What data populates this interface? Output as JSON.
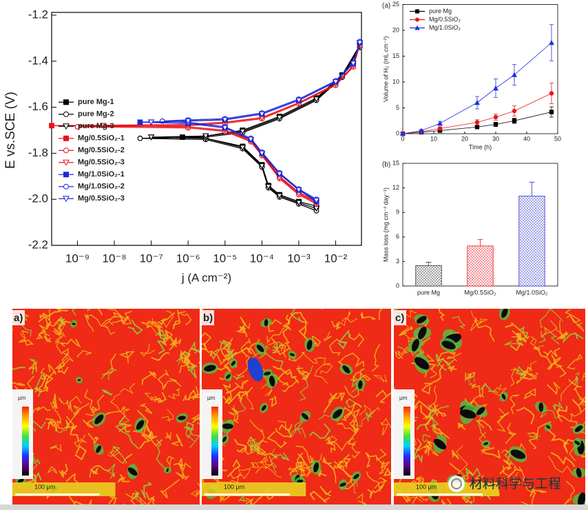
{
  "chart_data": [
    {
      "type": "line",
      "xscale": "log",
      "xlabel": "j (A cm⁻²)",
      "ylabel": "E vs.SCE (V)",
      "xlim": [
        2e-10,
        0.05
      ],
      "ylim": [
        -2.2,
        -1.2
      ],
      "xticks": [
        {
          "value": 1e-09,
          "label": "10⁻⁹"
        },
        {
          "value": 1e-08,
          "label": "10⁻⁸"
        },
        {
          "value": 1e-07,
          "label": "10⁻⁷"
        },
        {
          "value": 1e-06,
          "label": "10⁻⁶"
        },
        {
          "value": 1e-05,
          "label": "10⁻⁵"
        },
        {
          "value": 0.0001,
          "label": "10⁻⁴"
        },
        {
          "value": 0.001,
          "label": "10⁻³"
        },
        {
          "value": 0.01,
          "label": "10⁻²"
        }
      ],
      "yticks": [
        -2.2,
        {
          "value": -2,
          "label": "-2.0"
        },
        -1.8,
        -1.6,
        -1.4,
        -1.2
      ],
      "legend": "center left",
      "series": [
        {
          "name": "pure Mg-1",
          "color": "#000000",
          "marker": "square",
          "filled": true,
          "x": [
            0.003,
            0.001,
            0.0003,
            0.00015,
            0.0001,
            3e-05,
            3e-06,
            7e-07,
            3e-06,
            3e-05,
            0.0003,
            0.003,
            0.015,
            0.045
          ],
          "values": [
            -2.03,
            -2.01,
            -1.98,
            -1.94,
            -1.85,
            -1.77,
            -1.735,
            -1.73,
            -1.725,
            -1.7,
            -1.64,
            -1.56,
            -1.46,
            -1.33
          ]
        },
        {
          "name": "pure Mg-2",
          "color": "#000000",
          "marker": "circle",
          "filled": false,
          "x": [
            0.003,
            0.001,
            0.0003,
            0.00015,
            0.0001,
            3e-05,
            3e-06,
            5e-08,
            3e-06,
            3e-05,
            0.0003,
            0.003,
            0.015,
            0.045
          ],
          "values": [
            -2.05,
            -2.02,
            -1.99,
            -1.95,
            -1.86,
            -1.78,
            -1.74,
            -1.735,
            -1.73,
            -1.71,
            -1.65,
            -1.57,
            -1.47,
            -1.34
          ]
        },
        {
          "name": "pure Mg-3",
          "color": "#000000",
          "marker": "triangle-down",
          "filled": false,
          "x": [
            0.003,
            0.001,
            0.0003,
            0.00015,
            0.0001,
            3e-05,
            3e-06,
            1e-07,
            3e-06,
            3e-05,
            0.0003,
            0.003,
            0.015,
            0.045
          ],
          "values": [
            -2.04,
            -2.015,
            -1.985,
            -1.945,
            -1.855,
            -1.775,
            -1.735,
            -1.73,
            -1.725,
            -1.705,
            -1.645,
            -1.565,
            -1.465,
            -1.335
          ]
        },
        {
          "name": "Mg/0.5SiO₂-1",
          "color": "#e8141b",
          "marker": "square",
          "filled": true,
          "x": [
            0.003,
            0.001,
            0.0003,
            0.0001,
            5e-05,
            1e-05,
            1e-06,
            2e-10,
            1e-06,
            1e-05,
            0.0001,
            0.001,
            0.01,
            0.03,
            0.045
          ],
          "values": [
            -2.01,
            -1.97,
            -1.9,
            -1.8,
            -1.74,
            -1.7,
            -1.685,
            -1.68,
            -1.675,
            -1.665,
            -1.645,
            -1.58,
            -1.5,
            -1.42,
            -1.32
          ]
        },
        {
          "name": "Mg/0.5SiO₂-2",
          "color": "#e8141b",
          "marker": "circle",
          "filled": false,
          "x": [
            0.003,
            0.001,
            0.0003,
            0.0001,
            5e-05,
            1e-05,
            1e-06,
            1e-09,
            1e-06,
            1e-05,
            0.0001,
            0.001,
            0.01,
            0.03,
            0.045
          ],
          "values": [
            -2.02,
            -1.98,
            -1.91,
            -1.81,
            -1.75,
            -1.705,
            -1.69,
            -1.685,
            -1.68,
            -1.67,
            -1.65,
            -1.585,
            -1.505,
            -1.425,
            -1.33
          ]
        },
        {
          "name": "Mg/0.5SiO₂-3",
          "color": "#e8141b",
          "marker": "triangle-down",
          "filled": false,
          "x": [
            0.003,
            0.001,
            0.0003,
            0.0001,
            5e-05,
            1e-05,
            1e-06,
            5e-09,
            1e-06,
            1e-05,
            0.0001,
            0.001,
            0.01,
            0.03,
            0.045
          ],
          "values": [
            -2.015,
            -1.975,
            -1.905,
            -1.805,
            -1.745,
            -1.7,
            -1.685,
            -1.68,
            -1.675,
            -1.665,
            -1.645,
            -1.58,
            -1.5,
            -1.42,
            -1.325
          ]
        },
        {
          "name": "Mg/1.0SiO₂-1",
          "color": "#1f28d6",
          "marker": "square",
          "filled": true,
          "x": [
            0.003,
            0.001,
            0.0003,
            0.0001,
            5e-05,
            1e-05,
            1e-06,
            5e-08,
            1e-06,
            1e-05,
            0.0001,
            0.001,
            0.01,
            0.03,
            0.045
          ],
          "values": [
            -2.01,
            -1.96,
            -1.89,
            -1.8,
            -1.74,
            -1.69,
            -1.67,
            -1.665,
            -1.66,
            -1.655,
            -1.63,
            -1.57,
            -1.49,
            -1.41,
            -1.32
          ]
        },
        {
          "name": "Mg/1.0SiO₂-2",
          "color": "#1f28d6",
          "marker": "circle",
          "filled": false,
          "x": [
            0.003,
            0.001,
            0.0003,
            0.0001,
            5e-05,
            1e-05,
            1e-06,
            2e-07,
            1e-06,
            1e-05,
            0.0001,
            0.001,
            0.01,
            0.03,
            0.045
          ],
          "values": [
            -2.0,
            -1.955,
            -1.885,
            -1.795,
            -1.735,
            -1.685,
            -1.665,
            -1.66,
            -1.655,
            -1.65,
            -1.625,
            -1.565,
            -1.485,
            -1.405,
            -1.315
          ]
        },
        {
          "name": "Mg/0.5SiO₂-3",
          "color": "#1f28d6",
          "marker": "triangle-down",
          "filled": false,
          "x": [
            0.003,
            0.001,
            0.0003,
            0.0001,
            5e-05,
            1e-05,
            1e-06,
            1e-07,
            1e-06,
            1e-05,
            0.0001,
            0.001,
            0.01,
            0.03,
            0.045
          ],
          "values": [
            -2.005,
            -1.96,
            -1.89,
            -1.8,
            -1.74,
            -1.69,
            -1.67,
            -1.665,
            -1.66,
            -1.655,
            -1.63,
            -1.57,
            -1.49,
            -1.41,
            -1.32
          ]
        }
      ]
    },
    {
      "type": "line",
      "title": "(a)",
      "xlabel": "Time (h)",
      "ylabel": "Volume of H₂ (mL cm⁻²)",
      "x": [
        0,
        6,
        12,
        24,
        30,
        36,
        48
      ],
      "xlim": [
        0,
        50
      ],
      "ylim": [
        0,
        25
      ],
      "xticks": [
        0,
        10,
        20,
        30,
        40,
        50
      ],
      "yticks": [
        0,
        5,
        10,
        15,
        20,
        25
      ],
      "legend": "upper left",
      "series": [
        {
          "name": "pure Mg",
          "color": "#000000",
          "marker": "square",
          "filled": true,
          "values": [
            0,
            0.3,
            0.6,
            1.3,
            1.8,
            2.5,
            4.2
          ],
          "errors": [
            0,
            0.1,
            0.2,
            0.3,
            0.4,
            0.5,
            1.0
          ]
        },
        {
          "name": "Mg/0.5SiO₂",
          "color": "#e8141b",
          "marker": "circle",
          "filled": true,
          "values": [
            0,
            0.4,
            1.0,
            2.2,
            3.2,
            4.4,
            7.8
          ],
          "errors": [
            0,
            0.2,
            0.3,
            0.5,
            0.6,
            1.0,
            2.0
          ]
        },
        {
          "name": "Mg/1.0SiO₂",
          "color": "#2030e0",
          "marker": "triangle-up",
          "filled": true,
          "values": [
            0,
            0.6,
            2.0,
            6.0,
            8.8,
            11.4,
            17.6
          ],
          "errors": [
            0,
            0.2,
            0.4,
            1.2,
            1.8,
            2.0,
            3.5
          ]
        }
      ]
    },
    {
      "type": "bar",
      "title": "(b)",
      "ylabel": "Mass loss (mg cm⁻² day⁻¹)",
      "categories": [
        "pure Mg",
        "Mg/0.5SiO₂",
        "Mg/1.0SiO₂"
      ],
      "values": [
        2.5,
        4.9,
        11.0
      ],
      "errors": [
        0.4,
        0.8,
        1.7
      ],
      "colors": [
        "#333333",
        "#e8141b",
        "#3a3ad0"
      ],
      "hatch": true,
      "ylim": [
        0,
        15
      ],
      "yticks": [
        0,
        3,
        6,
        9,
        12,
        15
      ]
    }
  ],
  "micrographs": {
    "panels": [
      {
        "label": "a)",
        "scale_bar": "100 μm"
      },
      {
        "label": "b)",
        "scale_bar": "100 μm"
      },
      {
        "label": "c)",
        "scale_bar": "100 μm"
      }
    ],
    "colorbar_unit": "μm"
  },
  "watermark": "材料科学与工程"
}
